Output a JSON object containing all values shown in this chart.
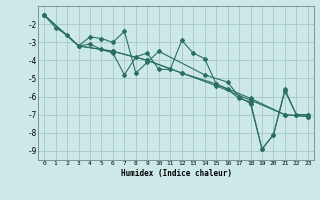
{
  "title": "",
  "xlabel": "Humidex (Indice chaleur)",
  "background_color": "#cce8e8",
  "grid_color": "#aacccc",
  "line_color": "#2a7060",
  "xlim": [
    -0.5,
    23.5
  ],
  "ylim": [
    -9.5,
    -1.0
  ],
  "xticks": [
    0,
    1,
    2,
    3,
    4,
    5,
    6,
    7,
    8,
    9,
    10,
    11,
    12,
    13,
    14,
    15,
    16,
    17,
    18,
    19,
    20,
    21,
    22,
    23
  ],
  "yticks": [
    -9,
    -8,
    -7,
    -6,
    -5,
    -4,
    -3,
    -2
  ],
  "series": [
    [
      [
        0,
        -1.5
      ],
      [
        1,
        -2.2
      ],
      [
        2,
        -2.6
      ],
      [
        3,
        -3.2
      ],
      [
        4,
        -3.1
      ],
      [
        5,
        -3.4
      ],
      [
        6,
        -3.6
      ],
      [
        7,
        -4.8
      ],
      [
        8,
        -3.8
      ],
      [
        9,
        -3.6
      ],
      [
        10,
        -4.5
      ],
      [
        11,
        -4.5
      ],
      [
        12,
        -2.9
      ],
      [
        13,
        -3.6
      ],
      [
        14,
        -3.9
      ],
      [
        15,
        -5.3
      ],
      [
        16,
        -5.6
      ],
      [
        17,
        -6.1
      ],
      [
        18,
        -6.3
      ],
      [
        19,
        -8.9
      ],
      [
        20,
        -8.1
      ],
      [
        21,
        -5.6
      ],
      [
        22,
        -7.0
      ],
      [
        23,
        -7.0
      ]
    ],
    [
      [
        0,
        -1.5
      ],
      [
        3,
        -3.2
      ],
      [
        4,
        -2.7
      ],
      [
        5,
        -2.8
      ],
      [
        6,
        -3.0
      ],
      [
        7,
        -2.4
      ],
      [
        8,
        -4.7
      ],
      [
        9,
        -4.1
      ],
      [
        10,
        -3.5
      ],
      [
        14,
        -4.8
      ],
      [
        16,
        -5.2
      ],
      [
        17,
        -6.0
      ],
      [
        18,
        -6.4
      ],
      [
        19,
        -8.9
      ],
      [
        20,
        -8.1
      ],
      [
        21,
        -5.7
      ],
      [
        22,
        -7.0
      ],
      [
        23,
        -7.0
      ]
    ],
    [
      [
        0,
        -1.5
      ],
      [
        3,
        -3.2
      ],
      [
        6,
        -3.5
      ],
      [
        9,
        -4.0
      ],
      [
        12,
        -4.7
      ],
      [
        15,
        -5.4
      ],
      [
        18,
        -6.2
      ],
      [
        21,
        -7.0
      ],
      [
        23,
        -7.1
      ]
    ],
    [
      [
        0,
        -1.5
      ],
      [
        3,
        -3.2
      ],
      [
        6,
        -3.5
      ],
      [
        9,
        -4.0
      ],
      [
        12,
        -4.7
      ],
      [
        15,
        -5.3
      ],
      [
        18,
        -6.1
      ],
      [
        21,
        -7.0
      ],
      [
        23,
        -7.1
      ]
    ]
  ]
}
